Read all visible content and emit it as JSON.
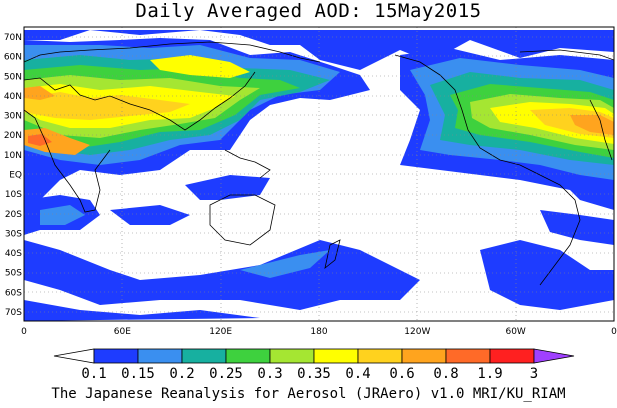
{
  "title": "Daily Averaged AOD: 15May2015",
  "footer": "The Japanese Reanalysis for Aerosol (JRAero) v1.0 MRI/KU_RIAM",
  "chart_data": {
    "type": "heatmap",
    "variable": "AOD",
    "date": "15May2015",
    "lat_labels": [
      "70N",
      "60N",
      "50N",
      "40N",
      "30N",
      "20N",
      "10N",
      "EQ",
      "10S",
      "20S",
      "30S",
      "40S",
      "50S",
      "60S",
      "70S"
    ],
    "lon_labels": [
      "0",
      "60E",
      "120E",
      "180",
      "120W",
      "60W",
      "0"
    ],
    "lat_range": [
      -75,
      75
    ],
    "lon_range": [
      0,
      360
    ],
    "grid": true,
    "colorbar": {
      "levels": [
        "0.1",
        "0.15",
        "0.2",
        "0.25",
        "0.3",
        "0.35",
        "0.4",
        "0.6",
        "0.8",
        "1.9",
        "3"
      ],
      "colors": [
        "#ffffff",
        "#1e3cff",
        "#3a8ff0",
        "#17b0a0",
        "#3ed13e",
        "#a5e632",
        "#ffff00",
        "#ffd21e",
        "#ffa41e",
        "#ff6a28",
        "#ff2020",
        "#a040ff"
      ]
    }
  }
}
